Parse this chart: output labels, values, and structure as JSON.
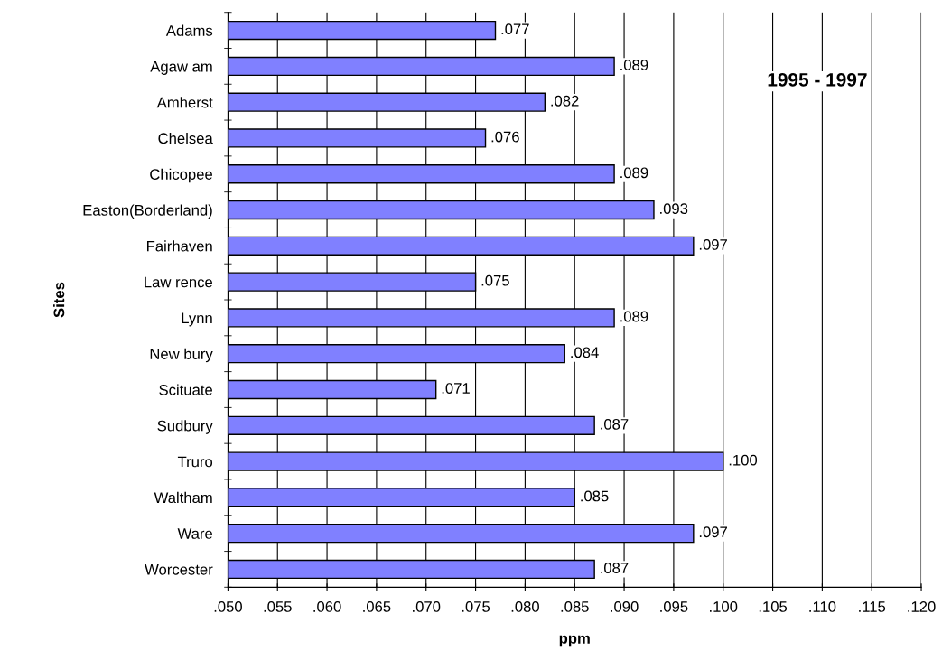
{
  "chart_data": {
    "type": "bar",
    "orientation": "horizontal",
    "xlabel": "ppm",
    "ylabel": "Sites",
    "categories": [
      "Adams",
      "Agaw am",
      "Amherst",
      "Chelsea",
      "Chicopee",
      "Easton(Borderland)",
      "Fairhaven",
      "Law rence",
      "Lynn",
      "New bury",
      "Scituate",
      "Sudbury",
      "Truro",
      "Waltham",
      "Ware",
      "Worcester"
    ],
    "values": [
      0.077,
      0.089,
      0.082,
      0.076,
      0.089,
      0.093,
      0.097,
      0.075,
      0.089,
      0.084,
      0.071,
      0.087,
      0.1,
      0.085,
      0.097,
      0.087
    ],
    "value_labels": [
      ".077",
      ".089",
      ".082",
      ".076",
      ".089",
      ".093",
      ".097",
      ".075",
      ".089",
      ".084",
      ".071",
      ".087",
      ".100",
      ".085",
      ".097",
      ".087"
    ],
    "color": "#8080ff",
    "xlim": [
      0.05,
      0.12
    ],
    "xticks": [
      {
        "value": 0.05,
        "label": ".050"
      },
      {
        "value": 0.055,
        "label": ".055"
      },
      {
        "value": 0.06,
        "label": ".060"
      },
      {
        "value": 0.065,
        "label": ".065"
      },
      {
        "value": 0.07,
        "label": ".070"
      },
      {
        "value": 0.075,
        "label": ".075"
      },
      {
        "value": 0.08,
        "label": ".080"
      },
      {
        "value": 0.085,
        "label": ".085"
      },
      {
        "value": 0.09,
        "label": ".090"
      },
      {
        "value": 0.095,
        "label": ".095"
      },
      {
        "value": 0.1,
        "label": ".100"
      },
      {
        "value": 0.105,
        "label": ".105"
      },
      {
        "value": 0.11,
        "label": ".110"
      },
      {
        "value": 0.115,
        "label": ".115"
      },
      {
        "value": 0.12,
        "label": ".120"
      }
    ],
    "grid": "x",
    "annotations": [
      "1995 - 1997"
    ]
  }
}
